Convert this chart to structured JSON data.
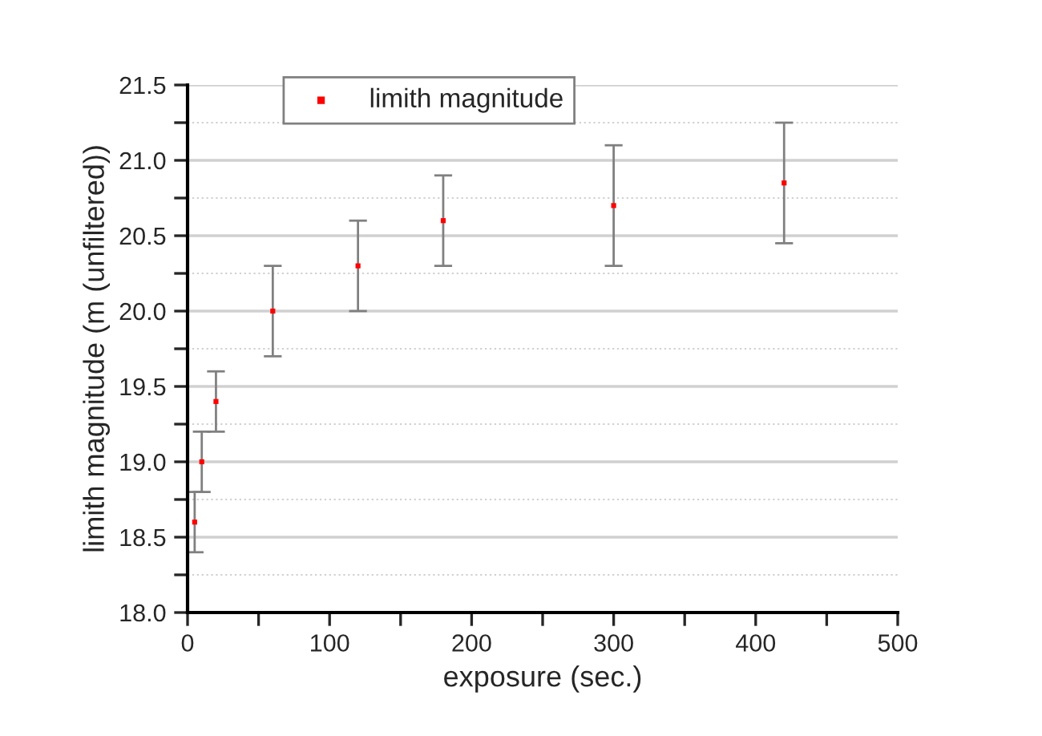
{
  "chart_data": {
    "type": "scatter",
    "xlabel": "exposure (sec.)",
    "ylabel": "limith magnitude (m (unfiltered))",
    "x": [
      5,
      10,
      20,
      60,
      120,
      180,
      300,
      420
    ],
    "series": [
      {
        "name": "limith magnitude",
        "color": "#ff0000",
        "values": [
          18.6,
          19.0,
          19.4,
          20.0,
          20.3,
          20.6,
          20.7,
          20.85
        ],
        "errors": [
          0.2,
          0.2,
          0.2,
          0.3,
          0.3,
          0.3,
          0.4,
          0.4
        ]
      }
    ],
    "xlim": [
      0,
      500
    ],
    "xticks": [
      0,
      {
        "value": 50,
        "label": null
      },
      100,
      {
        "value": 150,
        "label": null
      },
      200,
      {
        "value": 250,
        "label": null
      },
      300,
      {
        "value": 350,
        "label": null
      },
      400,
      {
        "value": 450,
        "label": null
      },
      500
    ],
    "ylim": [
      18.0,
      21.5
    ],
    "yticks": [
      {
        "value": 18.0,
        "label": "18.0"
      },
      {
        "value": 18.25,
        "label": null
      },
      {
        "value": 18.5,
        "label": "18.5"
      },
      {
        "value": 18.75,
        "label": null
      },
      {
        "value": 19.0,
        "label": "19.0"
      },
      {
        "value": 19.25,
        "label": null
      },
      {
        "value": 19.5,
        "label": "19.5"
      },
      {
        "value": 19.75,
        "label": null
      },
      {
        "value": 20.0,
        "label": "20.0"
      },
      {
        "value": 20.25,
        "label": null
      },
      {
        "value": 20.5,
        "label": "20.5"
      },
      {
        "value": 20.75,
        "label": null
      },
      {
        "value": 21.0,
        "label": "21.0"
      },
      {
        "value": 21.25,
        "label": null
      },
      {
        "value": 21.5,
        "label": "21.5"
      }
    ],
    "grid": "y",
    "legend": "top",
    "marker": "square"
  }
}
